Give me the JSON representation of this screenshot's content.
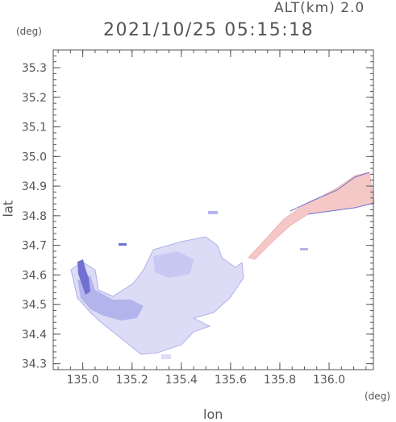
{
  "header": {
    "alt_label": "ALT(km) 2.0",
    "timestamp": "2021/10/25 05:15:18"
  },
  "chart_data": {
    "type": "heatmap",
    "xlabel": "lon",
    "ylabel": "lat",
    "x_unit": "(deg)",
    "y_unit": "(deg)",
    "xlim": [
      134.88,
      136.18
    ],
    "ylim": [
      34.28,
      35.36
    ],
    "x_ticks": [
      "135.0",
      "135.2",
      "135.4",
      "135.6",
      "135.8",
      "136.0"
    ],
    "x_tick_values": [
      135.0,
      135.2,
      135.4,
      135.6,
      135.8,
      136.0
    ],
    "y_ticks": [
      "34.3",
      "34.4",
      "34.5",
      "34.6",
      "34.7",
      "34.8",
      "34.9",
      "35.0",
      "35.1",
      "35.2",
      "35.3"
    ],
    "y_tick_values": [
      34.3,
      34.4,
      34.5,
      34.6,
      34.7,
      34.8,
      34.9,
      35.0,
      35.1,
      35.2,
      35.3
    ],
    "colors": {
      "frame": "#555555",
      "bay_fill": "#dcdcf7",
      "bay_dark": "#b4b4ec",
      "bay_deep": "#7070d0",
      "channel_fill": "#f5c8c8",
      "channel_edge": "#7070d0"
    }
  }
}
